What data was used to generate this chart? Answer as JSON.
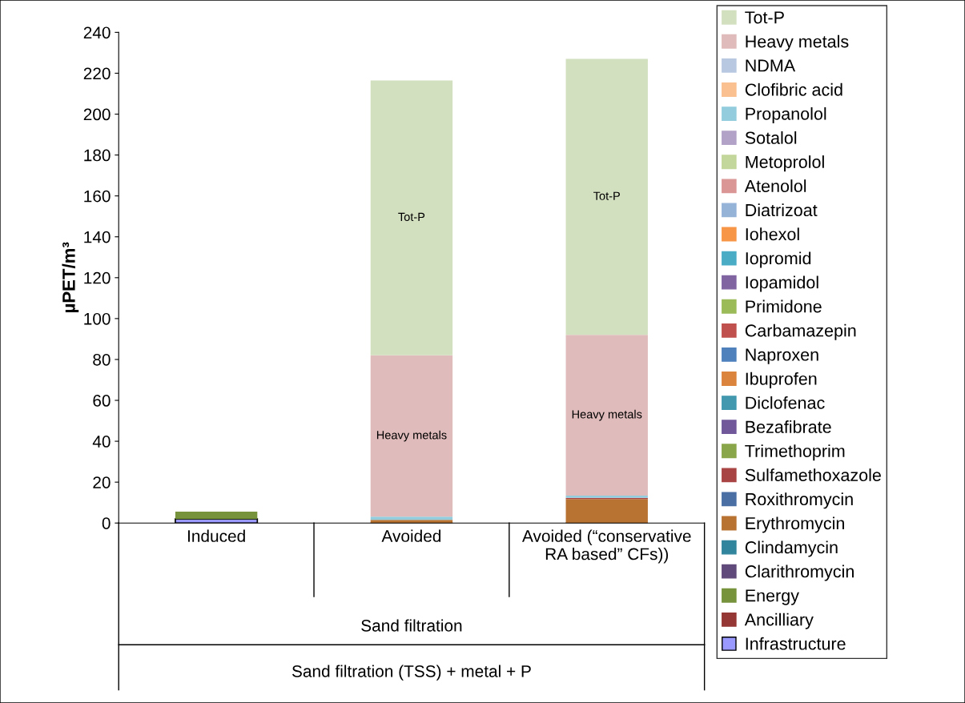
{
  "chart_data": {
    "type": "bar",
    "stacked": true,
    "ylabel": "µPET/m³",
    "categories": [
      "Induced",
      "Avoided",
      "Avoided (“conservative\nRA based” CFs))"
    ],
    "ylim": [
      0,
      240
    ],
    "yticks": [
      0,
      20,
      40,
      60,
      80,
      100,
      120,
      140,
      160,
      180,
      200,
      220,
      240
    ],
    "grid": false,
    "legend": "right",
    "series": [
      {
        "name": "Infrastructure",
        "color": "#9999ff",
        "values": [
          2.0,
          0,
          0
        ]
      },
      {
        "name": "Ancilliary",
        "color": "#953735",
        "values": [
          0,
          0,
          0
        ]
      },
      {
        "name": "Energy",
        "color": "#77933c",
        "values": [
          3.6,
          0,
          0
        ]
      },
      {
        "name": "Clarithromycin",
        "color": "#604a7b",
        "values": [
          0,
          0,
          0
        ]
      },
      {
        "name": "Clindamycin",
        "color": "#31859c",
        "values": [
          0,
          0,
          0
        ]
      },
      {
        "name": "Erythromycin",
        "color": "#b87333",
        "values": [
          0,
          1.6,
          11.7
        ]
      },
      {
        "name": "Roxithromycin",
        "color": "#4a6fa5",
        "values": [
          0,
          0,
          0
        ]
      },
      {
        "name": "Sulfamethoxazole",
        "color": "#a94444",
        "values": [
          0,
          0,
          0.6
        ]
      },
      {
        "name": "Trimethoprim",
        "color": "#8aa64a",
        "values": [
          0,
          0,
          0
        ]
      },
      {
        "name": "Bezafibrate",
        "color": "#70589a",
        "values": [
          0,
          0,
          0
        ]
      },
      {
        "name": "Diclofenac",
        "color": "#4198af",
        "values": [
          0,
          0,
          0
        ]
      },
      {
        "name": "Ibuprofen",
        "color": "#db843d",
        "values": [
          0,
          0,
          0
        ]
      },
      {
        "name": "Naproxen",
        "color": "#4f81bd",
        "values": [
          0,
          0,
          0
        ]
      },
      {
        "name": "Carbamazepin",
        "color": "#c0504d",
        "values": [
          0,
          0,
          0
        ]
      },
      {
        "name": "Primidone",
        "color": "#9bbb59",
        "values": [
          0,
          0,
          0
        ]
      },
      {
        "name": "Iopamidol",
        "color": "#8064a2",
        "values": [
          0,
          0,
          0
        ]
      },
      {
        "name": "Iopromid",
        "color": "#4bacc6",
        "values": [
          0,
          0,
          0
        ]
      },
      {
        "name": "Iohexol",
        "color": "#f79646",
        "values": [
          0,
          0,
          0
        ]
      },
      {
        "name": "Diatrizoat",
        "color": "#95b3d7",
        "values": [
          0,
          0,
          0
        ]
      },
      {
        "name": "Atenolol",
        "color": "#d99694",
        "values": [
          0,
          0,
          0
        ]
      },
      {
        "name": "Metoprolol",
        "color": "#c3d69b",
        "values": [
          0,
          0,
          0
        ]
      },
      {
        "name": "Sotalol",
        "color": "#b3a2c7",
        "values": [
          0,
          0,
          0
        ]
      },
      {
        "name": "Propanolol",
        "color": "#93cddd",
        "values": [
          0,
          1.5,
          1.1
        ]
      },
      {
        "name": "Clofibric acid",
        "color": "#fac090",
        "values": [
          0,
          0,
          0
        ]
      },
      {
        "name": "NDMA",
        "color": "#b9c8e1",
        "values": [
          0,
          0,
          0
        ]
      },
      {
        "name": "Heavy metals",
        "color": "#e0bbbb",
        "values": [
          0,
          78.9,
          78.6
        ],
        "value_labels": [
          null,
          "Heavy metals",
          "Heavy metals"
        ]
      },
      {
        "name": "Tot-P",
        "color": "#d3e0c0",
        "values": [
          0,
          134.5,
          135.0
        ],
        "value_labels": [
          null,
          "Tot-P",
          "Tot-P"
        ]
      }
    ],
    "annotations": [
      "Sand filtration",
      "Sand filtration (TSS) + metal + P"
    ]
  }
}
